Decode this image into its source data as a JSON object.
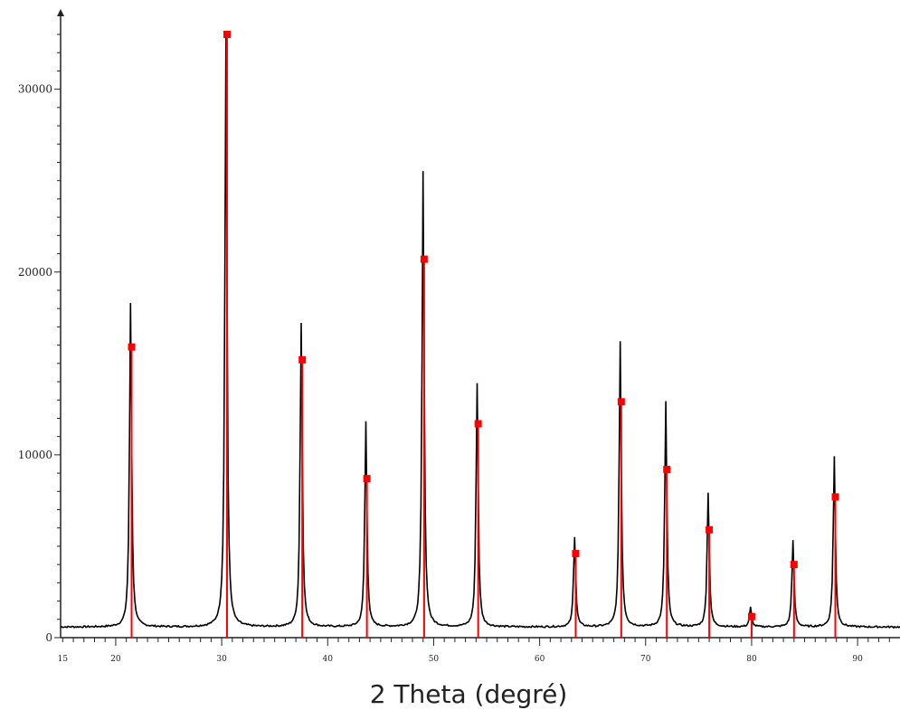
{
  "chart_data": {
    "type": "line",
    "title": "",
    "xlabel": "2 Theta (degré)",
    "ylabel": "",
    "xlim": [
      14.8,
      94
    ],
    "ylim": [
      0,
      34000
    ],
    "x_ticks": [
      15,
      20,
      30,
      40,
      50,
      60,
      70,
      80,
      90
    ],
    "y_ticks": [
      0,
      10000,
      20000,
      30000
    ],
    "grid": false,
    "colors": {
      "measured": "#000000",
      "reference": "#ff0000"
    },
    "baseline": 580,
    "series": [
      {
        "kind": "measured_pattern",
        "peaks": [
          {
            "x": 21.4,
            "y": 18300
          },
          {
            "x": 30.4,
            "y": 33000
          },
          {
            "x": 37.5,
            "y": 17200
          },
          {
            "x": 43.6,
            "y": 11800
          },
          {
            "x": 49.0,
            "y": 25500
          },
          {
            "x": 54.1,
            "y": 13900
          },
          {
            "x": 63.3,
            "y": 5500
          },
          {
            "x": 67.6,
            "y": 16200
          },
          {
            "x": 71.9,
            "y": 12900
          },
          {
            "x": 75.9,
            "y": 7900
          },
          {
            "x": 79.9,
            "y": 1650
          },
          {
            "x": 83.9,
            "y": 5300
          },
          {
            "x": 87.8,
            "y": 9900
          }
        ]
      },
      {
        "kind": "reference_pattern",
        "peaks": [
          {
            "x": 21.5,
            "y": 15900
          },
          {
            "x": 30.5,
            "y": 33000
          },
          {
            "x": 37.6,
            "y": 15200
          },
          {
            "x": 43.7,
            "y": 8700
          },
          {
            "x": 49.1,
            "y": 20700
          },
          {
            "x": 54.2,
            "y": 11700
          },
          {
            "x": 63.4,
            "y": 4600
          },
          {
            "x": 67.7,
            "y": 12900
          },
          {
            "x": 72.0,
            "y": 9200
          },
          {
            "x": 76.0,
            "y": 5900
          },
          {
            "x": 80.0,
            "y": 1150
          },
          {
            "x": 84.0,
            "y": 4000
          },
          {
            "x": 87.9,
            "y": 7700
          }
        ]
      }
    ]
  }
}
